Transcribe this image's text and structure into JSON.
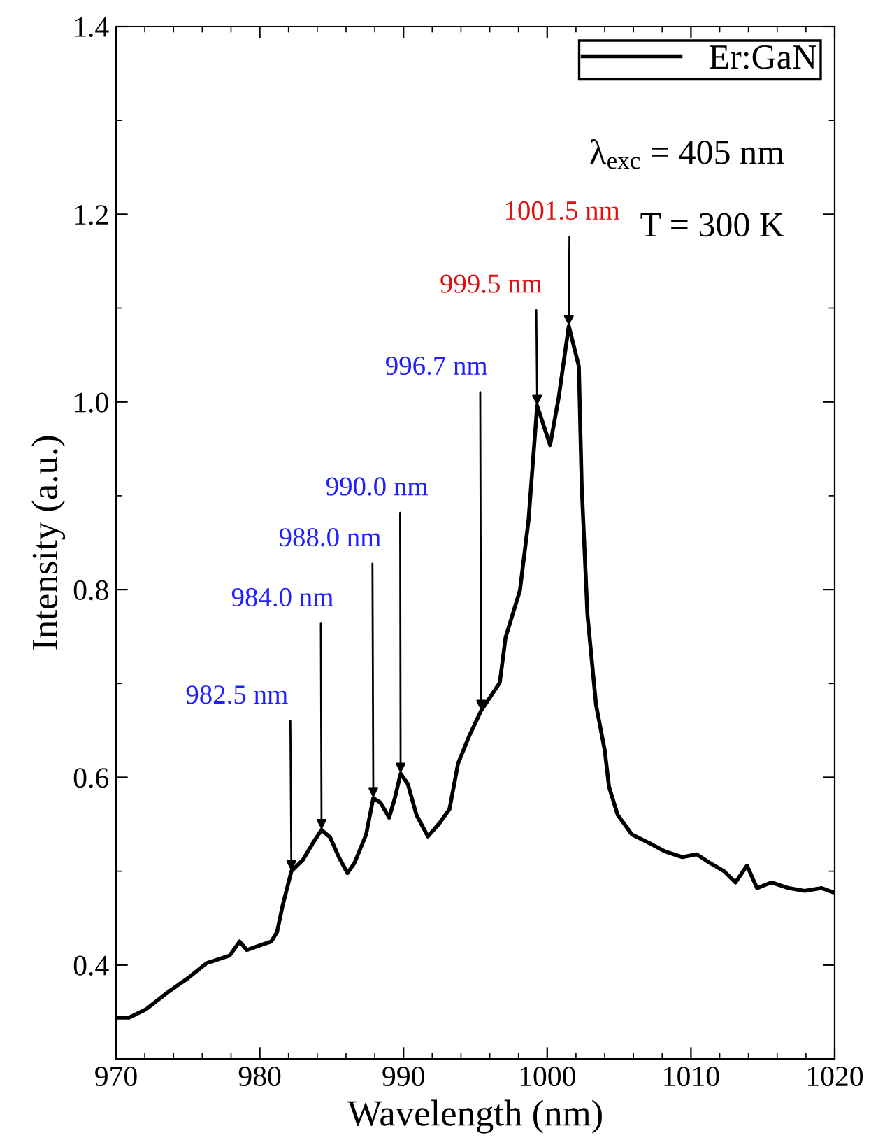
{
  "chart_data": {
    "type": "line",
    "xlabel": "Wavelength (nm)",
    "ylabel": "Intensity (a.u.)",
    "xlim": [
      970,
      1020
    ],
    "ylim": [
      0.3,
      1.4
    ],
    "xticks": [
      970,
      980,
      990,
      1000,
      1010,
      1020
    ],
    "yticks": [
      0.4,
      0.6,
      0.8,
      {
        "value": 1,
        "label": "1.0"
      },
      1.2,
      1.4
    ],
    "legend": "top right",
    "grid": false,
    "marker": "none",
    "line_style": "solid",
    "series": [
      {
        "name": "Er:GaN",
        "color": "#000000",
        "x": [
          970,
          970.9,
          972.1,
          973.6,
          975.0,
          976.3,
          977.9,
          978.6,
          979.1,
          980.2,
          980.8,
          981.2,
          981.6,
          982.2,
          983.0,
          983.7,
          984.3,
          984.9,
          985.5,
          986.1,
          986.6,
          987.4,
          987.9,
          988.4,
          989.0,
          989.4,
          989.8,
          990.3,
          990.9,
          991.7,
          992.5,
          993.2,
          993.8,
          994.6,
          995.4,
          996.7,
          997.1,
          998.1,
          998.7,
          999.3,
          1000.2,
          1000.8,
          1001.5,
          1002.2,
          1002.4,
          1002.8,
          1003.4,
          1004.0,
          1004.3,
          1004.9,
          1005.9,
          1007.1,
          1008.2,
          1009.4,
          1010.4,
          1011.3,
          1012.3,
          1013.1,
          1013.9,
          1014.6,
          1015.6,
          1016.8,
          1017.9,
          1019.1,
          1020
        ],
        "values": [
          0.344,
          0.344,
          0.353,
          0.371,
          0.386,
          0.402,
          0.41,
          0.425,
          0.416,
          0.422,
          0.425,
          0.435,
          0.464,
          0.5,
          0.512,
          0.53,
          0.544,
          0.536,
          0.515,
          0.498,
          0.509,
          0.539,
          0.578,
          0.573,
          0.557,
          0.578,
          0.604,
          0.593,
          0.56,
          0.537,
          0.551,
          0.566,
          0.615,
          0.645,
          0.671,
          0.701,
          0.749,
          0.799,
          0.874,
          0.996,
          0.954,
          1.005,
          1.081,
          1.038,
          0.91,
          0.773,
          0.677,
          0.629,
          0.59,
          0.56,
          0.539,
          0.53,
          0.521,
          0.515,
          0.518,
          0.509,
          0.5,
          0.488,
          0.506,
          0.482,
          0.488,
          0.482,
          0.479,
          0.482,
          0.477
        ]
      }
    ],
    "annotations": [
      "λ$_{exc}$ = 405 nm",
      "T = 300 K",
      {
        "text": "982.5 nm",
        "x": 982.2,
        "y": 0.5
      },
      {
        "text": "984.0 nm",
        "x": 984.3,
        "y": 0.544
      },
      {
        "text": "988.0 nm",
        "x": 987.9,
        "y": 0.578
      },
      {
        "text": "990.0 nm",
        "x": 989.8,
        "y": 0.604
      },
      {
        "text": "996.7 nm",
        "x": 995.4,
        "y": 0.671
      },
      {
        "text": "999.5 nm",
        "x": 999.3,
        "y": 0.996
      },
      {
        "text": "1001.5 nm",
        "x": 1001.5,
        "y": 1.081
      }
    ]
  }
}
